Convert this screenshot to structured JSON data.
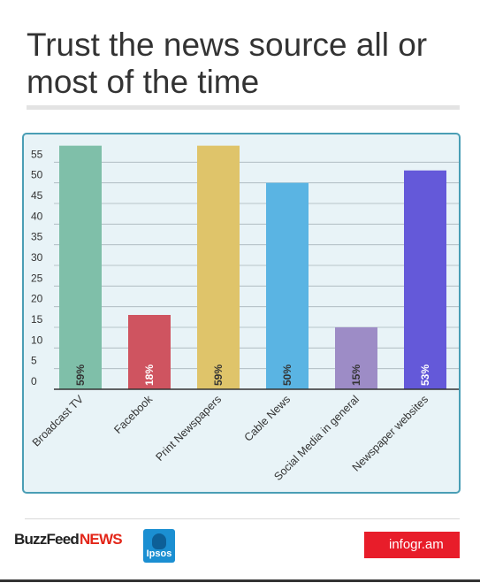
{
  "title": "Trust the news source all or most of the time",
  "chart_data": {
    "type": "bar",
    "categories": [
      "Broadcast TV",
      "Facebook",
      "Print Newspapers",
      "Cable News",
      "Social Media in general",
      "Newspaper websites"
    ],
    "values": [
      59,
      18,
      59,
      50,
      15,
      53
    ],
    "data_labels": [
      "59%",
      "18%",
      "59%",
      "50%",
      "15%",
      "53%"
    ],
    "bar_colors": [
      "#7fbfa9",
      "#cf5460",
      "#dfc46a",
      "#5ab4e3",
      "#9d8cc6",
      "#6459d9"
    ],
    "label_colors": [
      "#333333",
      "#ffffff",
      "#333333",
      "#333333",
      "#333333",
      "#ffffff"
    ],
    "yticks": [
      0,
      5,
      10,
      15,
      20,
      25,
      30,
      35,
      40,
      45,
      50,
      55
    ],
    "ylim": [
      0,
      60
    ],
    "grid": true,
    "title": "",
    "xlabel": "",
    "ylabel": ""
  },
  "footer": {
    "brand_left": "BuzzFeed",
    "brand_right": "NEWS",
    "partner": "Ipsos",
    "credit": "infogr.am"
  },
  "colors": {
    "background": "#e8f3f7",
    "border": "#4a9eb5",
    "gridline": "#5a6a72",
    "credit_bg": "#e81d2a"
  }
}
